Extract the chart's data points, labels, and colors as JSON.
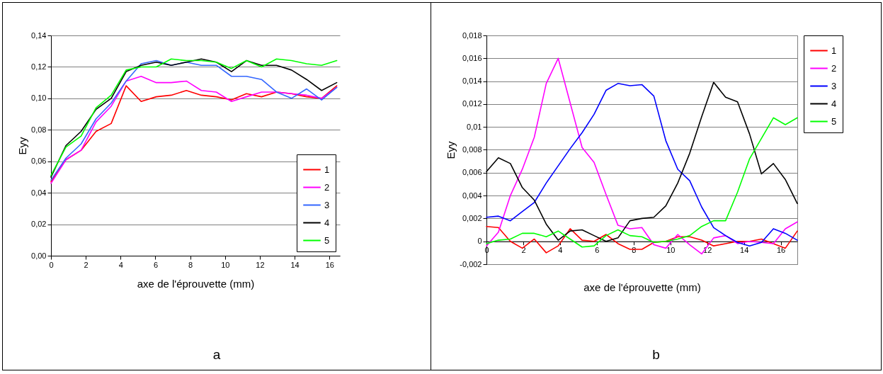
{
  "chart_data": [
    {
      "type": "line",
      "xlabel": "axe de l'éprouvette (mm)",
      "ylabel": "Eyy",
      "annotations": [
        "a"
      ],
      "x": [
        0,
        0.86,
        1.73,
        2.59,
        3.46,
        4.32,
        5.18,
        6.05,
        6.91,
        7.78,
        8.64,
        9.5,
        10.37,
        11.23,
        12.1,
        12.96,
        13.82,
        14.69,
        15.55,
        16.42
      ],
      "xlim": [
        0,
        16.6
      ],
      "xticks": [
        0,
        2,
        4,
        6,
        8,
        10,
        12,
        14,
        16
      ],
      "ylim": [
        0,
        0.14
      ],
      "yticks": [
        {
          "value": 0,
          "label": "0,00"
        },
        {
          "value": 0.02,
          "label": "0,02"
        },
        {
          "value": 0.04,
          "label": "0,04"
        },
        {
          "value": 0.06,
          "label": "0,06"
        },
        {
          "value": 0.08,
          "label": "0,08"
        },
        {
          "value": 0.1,
          "label": "0,10"
        },
        {
          "value": 0.12,
          "label": "0,12"
        },
        {
          "value": 0.14,
          "label": "0,14"
        }
      ],
      "grid": "y",
      "legend": "bottom right",
      "marker": "none",
      "line_style": "solid",
      "series": [
        {
          "name": "1",
          "color": "#ff0000",
          "values": [
            0.047,
            0.061,
            0.067,
            0.079,
            0.084,
            0.108,
            0.098,
            0.101,
            0.102,
            0.105,
            0.102,
            0.101,
            0.099,
            0.103,
            0.101,
            0.104,
            0.103,
            0.101,
            0.1,
            0.108
          ]
        },
        {
          "name": "2",
          "color": "#ff00ff",
          "values": [
            0.046,
            0.061,
            0.067,
            0.085,
            0.095,
            0.111,
            0.114,
            0.11,
            0.11,
            0.111,
            0.105,
            0.104,
            0.098,
            0.101,
            0.104,
            0.104,
            0.103,
            0.102,
            0.1,
            0.107
          ]
        },
        {
          "name": "3",
          "color": "#3366ff",
          "values": [
            0.048,
            0.062,
            0.071,
            0.087,
            0.097,
            0.111,
            0.122,
            0.124,
            0.121,
            0.123,
            0.121,
            0.121,
            0.114,
            0.114,
            0.112,
            0.104,
            0.1,
            0.106,
            0.099,
            0.107
          ]
        },
        {
          "name": "4",
          "color": "#000000",
          "values": [
            0.05,
            0.07,
            0.079,
            0.093,
            0.1,
            0.117,
            0.121,
            0.123,
            0.121,
            0.123,
            0.125,
            0.123,
            0.117,
            0.124,
            0.121,
            0.121,
            0.118,
            0.112,
            0.105,
            0.11
          ]
        },
        {
          "name": "5",
          "color": "#00ff00",
          "values": [
            0.051,
            0.069,
            0.076,
            0.094,
            0.102,
            0.118,
            0.12,
            0.12,
            0.125,
            0.124,
            0.124,
            0.123,
            0.119,
            0.124,
            0.12,
            0.125,
            0.124,
            0.122,
            0.121,
            0.124
          ]
        }
      ]
    },
    {
      "type": "line",
      "xlabel": "axe de l'éprouvette (mm)",
      "ylabel": "Eyy",
      "annotations": [
        "b"
      ],
      "x": [
        0,
        0.65,
        1.3,
        1.95,
        2.6,
        3.25,
        3.9,
        4.55,
        5.2,
        5.85,
        6.5,
        7.15,
        7.8,
        8.45,
        9.1,
        9.75,
        10.4,
        11.05,
        11.7,
        12.35,
        13,
        13.65,
        14.3,
        14.95,
        15.6,
        16.25,
        16.9
      ],
      "xlim": [
        0,
        16.9
      ],
      "xticks": [
        0,
        2,
        4,
        6,
        8,
        10,
        12,
        14,
        16
      ],
      "ylim": [
        -0.002,
        0.018
      ],
      "yticks": [
        {
          "value": -0.002,
          "label": "-0,002"
        },
        0,
        {
          "value": 0.002,
          "label": "0,002"
        },
        {
          "value": 0.004,
          "label": "0,004"
        },
        {
          "value": 0.006,
          "label": "0,006"
        },
        {
          "value": 0.008,
          "label": "0,008"
        },
        {
          "value": 0.01,
          "label": "0,01"
        },
        {
          "value": 0.012,
          "label": "0,012"
        },
        {
          "value": 0.014,
          "label": "0,014"
        },
        {
          "value": 0.016,
          "label": "0,016"
        },
        {
          "value": 0.018,
          "label": "0,018"
        }
      ],
      "grid": "y",
      "legend": "right",
      "marker": "none",
      "line_style": "solid",
      "series": [
        {
          "name": "1",
          "color": "#ff0000",
          "values": [
            0.0013,
            0.0012,
            0.0,
            -0.0006,
            0.0002,
            -0.001,
            -0.0004,
            0.0011,
            0.0001,
            0.0,
            0.0006,
            -0.0002,
            -0.0007,
            -0.0007,
            -0.0001,
            0.0,
            0.0004,
            0.0004,
            0.0001,
            -0.0004,
            -0.0002,
            0.0,
            0.0,
            0.0002,
            -0.0002,
            -0.0006,
            0.0009
          ]
        },
        {
          "name": "2",
          "color": "#ff00ff",
          "values": [
            -0.0004,
            0.0008,
            0.004,
            0.0063,
            0.0091,
            0.0138,
            0.016,
            0.0121,
            0.0082,
            0.0069,
            0.0041,
            0.0014,
            0.0011,
            0.0012,
            -0.0003,
            -0.0006,
            0.0006,
            -0.0003,
            -0.0011,
            0.0003,
            0.0005,
            -0.0002,
            0.0,
            -0.0001,
            -0.0002,
            0.0011,
            0.0017
          ]
        },
        {
          "name": "3",
          "color": "#0000ff",
          "values": [
            0.0021,
            0.0022,
            0.0018,
            0.0026,
            0.0034,
            0.0051,
            0.0066,
            0.0081,
            0.0095,
            0.0111,
            0.0132,
            0.0138,
            0.0136,
            0.0137,
            0.0127,
            0.0088,
            0.0063,
            0.0053,
            0.003,
            0.0012,
            0.0005,
            -0.0001,
            -0.0004,
            -0.0001,
            0.0011,
            0.0007,
            0.0001
          ]
        },
        {
          "name": "4",
          "color": "#000000",
          "values": [
            0.0061,
            0.0073,
            0.0068,
            0.0047,
            0.0036,
            0.0015,
            0.0001,
            0.0009,
            0.001,
            0.0005,
            0.0,
            0.0003,
            0.0018,
            0.002,
            0.0021,
            0.0031,
            0.0051,
            0.0077,
            0.0109,
            0.0139,
            0.0126,
            0.0122,
            0.0094,
            0.0059,
            0.0068,
            0.0054,
            0.0033
          ]
        },
        {
          "name": "5",
          "color": "#00ff00",
          "values": [
            -0.0002,
            0.0001,
            0.0002,
            0.0007,
            0.0007,
            0.0004,
            0.0009,
            0.0002,
            -0.0005,
            -0.0004,
            0.0005,
            0.001,
            0.0005,
            0.0004,
            -0.0001,
            0.0,
            0.0002,
            0.0005,
            0.0013,
            0.0018,
            0.0018,
            0.0043,
            0.0072,
            0.009,
            0.0108,
            0.0102,
            0.0108
          ]
        }
      ]
    }
  ]
}
